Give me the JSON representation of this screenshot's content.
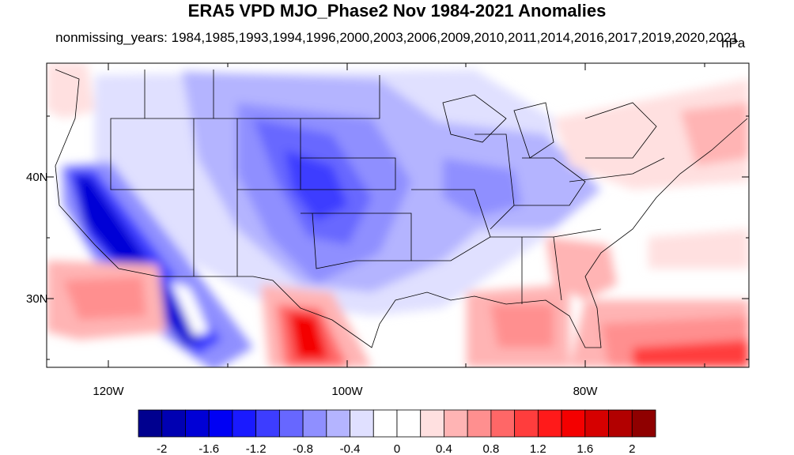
{
  "title": "ERA5 VPD MJO_Phase2 Nov 1984-2021 Anomalies",
  "subtitle": "nonmissing_years: 1984,1985,1993,1994,1996,2000,2003,2006,2009,2010,2011,2014,2016,2017,2019,2020,2021",
  "units": "hPa",
  "axes": {
    "lat_labels": [
      "40N",
      "30N"
    ],
    "lon_labels": [
      "120W",
      "100W",
      "80W"
    ]
  },
  "colorbar": {
    "colors": [
      "#00008f",
      "#0000b2",
      "#0000d6",
      "#0000f4",
      "#1a1aff",
      "#3d3dff",
      "#6767ff",
      "#8f8fff",
      "#b4b4ff",
      "#e0e0ff",
      "#ffffff",
      "#ffffff",
      "#ffe0e0",
      "#ffb4b4",
      "#ff8f8f",
      "#ff6767",
      "#ff3d3d",
      "#ff1a1a",
      "#f40000",
      "#d60000",
      "#b20000",
      "#8f0000"
    ],
    "tick_labels": [
      "-2",
      "-1.6",
      "-1.2",
      "-0.8",
      "-0.4",
      "0",
      "0.4",
      "0.8",
      "1.2",
      "1.6",
      "2"
    ]
  }
}
